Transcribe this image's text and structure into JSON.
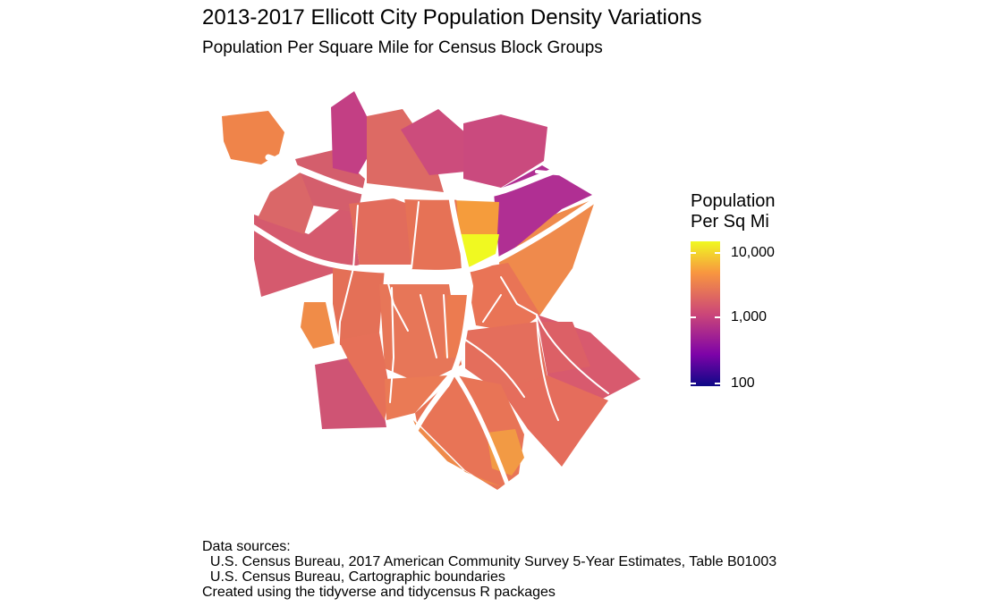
{
  "title": "2013-2017 Ellicott City Population Density Variations",
  "subtitle": "Population Per Square Mile for Census Block Groups",
  "legend": {
    "title_line1": "Population",
    "title_line2": "Per Sq Mi",
    "scale": "log",
    "ticks": [
      "10,000",
      "1,000",
      "100"
    ],
    "colors": {
      "high": "#f0f921",
      "mid_high": "#f89540",
      "mid": "#cc4778",
      "mid_low": "#7e03a8",
      "low": "#0d0887"
    }
  },
  "map": {
    "region_name": "Ellicott City",
    "unit": "Census Block Groups",
    "road_color": "#ffffff"
  },
  "footer": {
    "line1": "Data sources:",
    "line2": "  U.S. Census Bureau, 2017 American Community Survey 5-Year Estimates, Table B01003",
    "line3": "  U.S. Census Bureau, Cartographic boundaries",
    "line4": "Created using the tidyverse and tidycensus R packages"
  }
}
